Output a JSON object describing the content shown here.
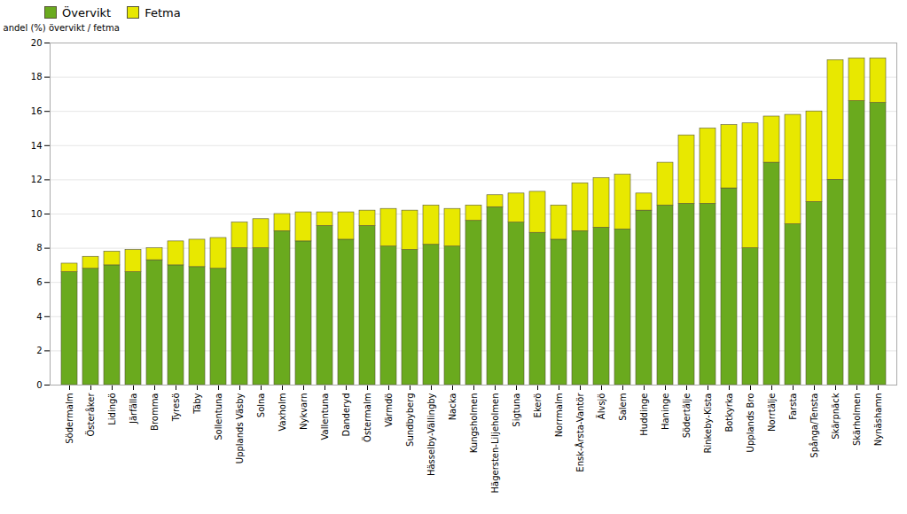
{
  "chart_data": {
    "type": "bar",
    "stacked": true,
    "categories": [
      "Södermalm",
      "Österåker",
      "Lidingö",
      "Järfälla",
      "Bromma",
      "Tyresö",
      "Täby",
      "Sollentuna",
      "Upplands Väsby",
      "Solna",
      "Vaxholm",
      "Nykvarn",
      "Vallentuna",
      "Danderyd",
      "Östermalm",
      "Värmdö",
      "Sundbyberg",
      "Hässelby-Vällingby",
      "Nacka",
      "Kungsholmen",
      "Hägersten-Liljeholmen",
      "Sigtuna",
      "Ekerö",
      "Norrmalm",
      "Ensk-Årsta-Vantör",
      "Älvsjö",
      "Salem",
      "Huddinge",
      "Haninge",
      "Södertälje",
      "Rinkeby-Kista",
      "Botkyrka",
      "Upplands Bro",
      "Norrtälje",
      "Farsta",
      "Spånga/Tensta",
      "Skärpnäck",
      "Skärholmen",
      "Nynäshamn"
    ],
    "series": [
      {
        "name": "Övervikt",
        "color": "#6aaa1e",
        "values": [
          6.6,
          6.8,
          7.0,
          6.6,
          7.3,
          7.0,
          6.9,
          6.8,
          8.0,
          8.0,
          9.0,
          8.4,
          9.3,
          8.5,
          9.3,
          8.1,
          7.9,
          8.2,
          8.1,
          9.6,
          10.4,
          9.5,
          8.9,
          8.5,
          9.0,
          9.2,
          9.1,
          10.2,
          10.5,
          10.6,
          10.6,
          11.5,
          8.0,
          13.0,
          9.4,
          10.7,
          12.0,
          16.6,
          16.5
        ]
      },
      {
        "name": "Fetma",
        "color": "#e8e800",
        "values": [
          0.5,
          0.7,
          0.8,
          1.3,
          0.7,
          1.4,
          1.6,
          1.8,
          1.5,
          1.7,
          1.0,
          1.7,
          0.8,
          1.6,
          0.9,
          2.2,
          2.3,
          2.3,
          2.2,
          0.9,
          0.7,
          1.7,
          2.4,
          2.0,
          2.8,
          2.9,
          3.2,
          1.0,
          2.5,
          4.0,
          4.4,
          3.7,
          7.3,
          2.7,
          6.4,
          5.3,
          7.0,
          2.5,
          2.6
        ]
      }
    ],
    "ylabel": "andel (%) övervikt / fetma",
    "ylim": [
      0,
      20
    ],
    "yticks": [
      0,
      2,
      4,
      6,
      8,
      10,
      12,
      14,
      16,
      18,
      20
    ],
    "grid": true,
    "legend": "upper left"
  }
}
